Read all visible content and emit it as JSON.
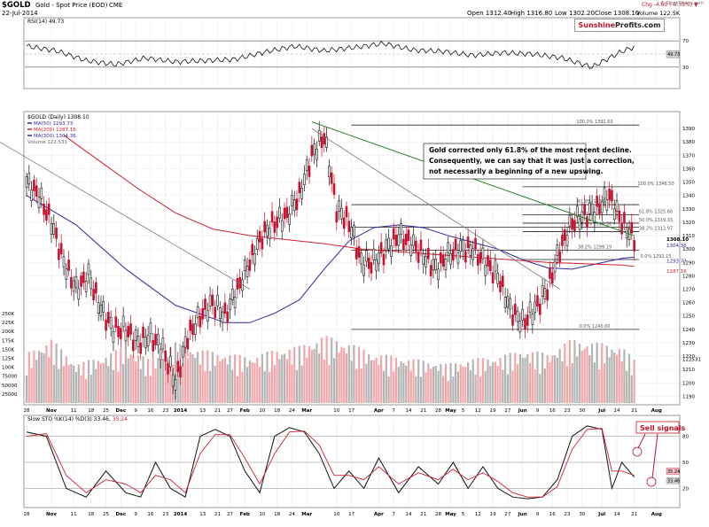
{
  "header": {
    "symbol": "$GOLD",
    "name": "Gold - Spot Price (EOD)",
    "exchange": "CME",
    "date": "22-Jul-2014",
    "open": "Open 1312.40",
    "high": "High 1316.80",
    "low": "Low 1302.20",
    "close": "Close 1308.10",
    "volume": "Volume 122.5K",
    "chg": "Chg -4.60 (-0.35%)",
    "chg_marker": "▼",
    "credit": "© StockCharts.com",
    "brand_a": "Sunshine",
    "brand_b": "Profits.com"
  },
  "legend": {
    "rsi": "RSI(14) 49.73",
    "gold": "$GOLD (Daily) 1308.10",
    "ma50": "MA(50) 1293.73",
    "ma200": "MA(200) 1287.16",
    "ma300": "MA(300) 1304.36",
    "volume": "Volume 122,531",
    "sto": "Slow STO %K(14) %D(3) 33.46,",
    "sto_d": "35.24"
  },
  "annotations": {
    "comment_line1": "Gold corrected only 61.8% of the most recent decline.",
    "comment_line2": "Consequently, we can say that it was just a correction,",
    "comment_line3": "not necessarily a beginning of a new upswing.",
    "sell_signals": "Sell signals"
  },
  "colors": {
    "up": "#111111",
    "down": "#c8102e",
    "ma50": "#2a2aa0",
    "ma200": "#d02030",
    "vol_up": "#b4b4b4",
    "vol_down": "#f2a6aa",
    "trend_green": "#2d7d2d",
    "trend_gray": "#7a7a7a",
    "accent": "#c0122c"
  },
  "chart_data": [
    {
      "type": "line",
      "title": "RSI(14) 49.73",
      "ylim": [
        0,
        100
      ],
      "y_ticks": [
        30,
        70
      ],
      "last_label": "49.73",
      "x": [
        0,
        12,
        24,
        36,
        48,
        60,
        72,
        84,
        96,
        108,
        120,
        132,
        144,
        156,
        168,
        180,
        192,
        204,
        216,
        228,
        240,
        252,
        260
      ],
      "values": [
        62,
        55,
        40,
        34,
        44,
        38,
        40,
        42,
        53,
        62,
        55,
        60,
        66,
        56,
        54,
        48,
        52,
        50,
        44,
        30,
        54,
        70,
        50
      ]
    },
    {
      "type": "line",
      "title": "$GOLD (Daily) 1308.10",
      "ylim": [
        1185,
        1400
      ],
      "y_ticks": [
        1190,
        1200,
        1210,
        1220,
        1230,
        1240,
        1250,
        1260,
        1270,
        1280,
        1290,
        1300,
        1310,
        1320,
        1330,
        1340,
        1350,
        1360,
        1370,
        1380,
        1390
      ],
      "x_ticks": [
        {
          "d": 0,
          "label": "28"
        },
        {
          "d": 10,
          "label": "Nov"
        },
        {
          "d": 19,
          "label": "11"
        },
        {
          "d": 26,
          "label": "18"
        },
        {
          "d": 32,
          "label": "25"
        },
        {
          "d": 38,
          "label": "Dec"
        },
        {
          "d": 44,
          "label": "9"
        },
        {
          "d": 50,
          "label": "16"
        },
        {
          "d": 56,
          "label": "23"
        },
        {
          "d": 62,
          "label": "2014"
        },
        {
          "d": 71,
          "label": "13"
        },
        {
          "d": 77,
          "label": "21"
        },
        {
          "d": 82,
          "label": "27"
        },
        {
          "d": 88,
          "label": "Feb"
        },
        {
          "d": 95,
          "label": "10"
        },
        {
          "d": 101,
          "label": "18"
        },
        {
          "d": 107,
          "label": "24"
        },
        {
          "d": 113,
          "label": "Mar"
        },
        {
          "d": 125,
          "label": "10"
        },
        {
          "d": 131,
          "label": "17"
        },
        {
          "d": 142,
          "label": "Apr"
        },
        {
          "d": 148,
          "label": "7"
        },
        {
          "d": 154,
          "label": "14"
        },
        {
          "d": 160,
          "label": "21"
        },
        {
          "d": 166,
          "label": "28"
        },
        {
          "d": 171,
          "label": "May"
        },
        {
          "d": 176,
          "label": "5"
        },
        {
          "d": 182,
          "label": "12"
        },
        {
          "d": 188,
          "label": "19"
        },
        {
          "d": 194,
          "label": "27"
        },
        {
          "d": 200,
          "label": "Jun"
        },
        {
          "d": 206,
          "label": "9"
        },
        {
          "d": 212,
          "label": "16"
        },
        {
          "d": 218,
          "label": "23"
        },
        {
          "d": 224,
          "label": "30"
        },
        {
          "d": 232,
          "label": "Jul"
        },
        {
          "d": 238,
          "label": "14"
        },
        {
          "d": 245,
          "label": "21"
        },
        {
          "d": 254,
          "label": "Aug"
        }
      ],
      "series": [
        {
          "name": "$GOLD",
          "kind": "candles",
          "x": [
            0,
            5,
            10,
            15,
            20,
            25,
            30,
            35,
            40,
            45,
            50,
            55,
            60,
            65,
            70,
            75,
            80,
            85,
            90,
            95,
            100,
            105,
            110,
            115,
            120,
            125,
            130,
            135,
            140,
            145,
            150,
            155,
            160,
            165,
            170,
            175,
            180,
            185,
            190,
            195,
            200,
            205,
            210,
            215,
            220,
            225,
            230,
            235,
            240,
            245
          ],
          "values": [
            1350,
            1340,
            1320,
            1290,
            1270,
            1280,
            1255,
            1240,
            1240,
            1230,
            1235,
            1225,
            1200,
            1235,
            1250,
            1260,
            1250,
            1270,
            1290,
            1310,
            1320,
            1325,
            1340,
            1370,
            1385,
            1330,
            1320,
            1290,
            1290,
            1300,
            1310,
            1305,
            1295,
            1285,
            1295,
            1300,
            1300,
            1290,
            1280,
            1255,
            1245,
            1255,
            1270,
            1300,
            1320,
            1325,
            1330,
            1340,
            1320,
            1308
          ]
        },
        {
          "name": "MA(50) 1293.73",
          "x": [
            0,
            20,
            40,
            60,
            80,
            90,
            100,
            110,
            120,
            130,
            140,
            150,
            160,
            170,
            180,
            190,
            200,
            210,
            220,
            230,
            240,
            245
          ],
          "values": [
            1340,
            1318,
            1285,
            1258,
            1245,
            1245,
            1252,
            1262,
            1285,
            1306,
            1316,
            1318,
            1316,
            1310,
            1305,
            1300,
            1292,
            1286,
            1285,
            1289,
            1293,
            1294
          ]
        },
        {
          "name": "MA(200) 1287.16",
          "x": [
            15,
            30,
            45,
            60,
            75,
            90,
            105,
            120,
            135,
            150,
            165,
            180,
            195,
            210,
            225,
            240,
            245
          ],
          "values": [
            1385,
            1365,
            1345,
            1327,
            1315,
            1310,
            1307,
            1304,
            1300,
            1298,
            1296,
            1294,
            1292,
            1290,
            1289,
            1288,
            1287
          ]
        }
      ],
      "trendlines": [
        {
          "name": "green resistance",
          "from": [
            115,
            1395
          ],
          "to": [
            245,
            1310
          ]
        },
        {
          "name": "gray resistance 1",
          "from": [
            -20,
            1390
          ],
          "to": [
            90,
            1270
          ]
        },
        {
          "name": "gray resistance 2",
          "from": [
            115,
            1390
          ],
          "to": [
            215,
            1270
          ]
        }
      ],
      "fib_levels": [
        {
          "label": "100.0% 1392.60",
          "value": 1392.6
        },
        {
          "label": "61.8% 1333.15",
          "value": 1333.15
        },
        {
          "label": "50.0% 1316.32",
          "value": 1316.32
        },
        {
          "label": "38.2% 1299.19",
          "value": 1299.19
        },
        {
          "label": "0.0% 1240.00",
          "value": 1240.0
        },
        {
          "label": "100.0% 1346.50",
          "value": 1346.5
        },
        {
          "label": "61.8% 1325.68",
          "value": 1325.68
        },
        {
          "label": "50.0% 1319.33",
          "value": 1319.33
        },
        {
          "label": "38.2% 1312.97",
          "value": 1312.97
        },
        {
          "label": "0.0% 1292.15",
          "value": 1292.15
        }
      ],
      "price_labels": [
        {
          "label": "1308.10",
          "value": 1308.1
        },
        {
          "label": "1304.36",
          "value": 1304.36
        },
        {
          "label": "1293.73",
          "value": 1293.73
        },
        {
          "label": "1287.16",
          "value": 1287.16
        }
      ]
    },
    {
      "type": "bar",
      "title": "Volume 122,531",
      "ylim": [
        0,
        260000
      ],
      "y_ticks": [
        "25000",
        "50000",
        "75000",
        "100K",
        "125K",
        "150K",
        "175K",
        "200K",
        "225K",
        "250K"
      ],
      "last_label": "122531",
      "x": [
        0,
        10,
        20,
        30,
        40,
        50,
        60,
        70,
        80,
        90,
        100,
        110,
        120,
        130,
        140,
        150,
        160,
        170,
        180,
        190,
        200,
        210,
        220,
        230,
        240,
        245
      ],
      "values": [
        140000,
        180000,
        110000,
        130000,
        160000,
        120000,
        170000,
        150000,
        140000,
        130000,
        150000,
        160000,
        190000,
        170000,
        140000,
        130000,
        120000,
        110000,
        125000,
        130000,
        150000,
        140000,
        180000,
        170000,
        160000,
        122531
      ]
    },
    {
      "type": "line",
      "title": "Slow STO %K(14) %D(3) 33.46, 35.24",
      "ylim": [
        0,
        100
      ],
      "y_ticks": [
        20,
        50,
        80
      ],
      "last_labels": [
        "35.24",
        "33.46"
      ],
      "series": [
        {
          "name": "%K",
          "x": [
            0,
            8,
            16,
            24,
            32,
            40,
            46,
            52,
            58,
            64,
            70,
            76,
            82,
            88,
            94,
            100,
            106,
            112,
            118,
            124,
            130,
            136,
            142,
            150,
            158,
            166,
            172,
            178,
            184,
            190,
            196,
            202,
            208,
            214,
            220,
            226,
            232,
            236,
            240,
            245
          ],
          "values": [
            85,
            80,
            20,
            10,
            40,
            15,
            10,
            50,
            20,
            10,
            80,
            88,
            80,
            40,
            15,
            80,
            90,
            85,
            60,
            20,
            40,
            20,
            55,
            15,
            45,
            25,
            50,
            20,
            45,
            20,
            10,
            8,
            10,
            30,
            80,
            92,
            88,
            20,
            50,
            33
          ]
        },
        {
          "name": "%D",
          "x": [
            0,
            8,
            16,
            24,
            32,
            40,
            46,
            52,
            58,
            64,
            70,
            76,
            82,
            88,
            94,
            100,
            106,
            112,
            118,
            124,
            130,
            136,
            142,
            150,
            158,
            166,
            172,
            178,
            184,
            190,
            196,
            202,
            208,
            214,
            220,
            226,
            232,
            236,
            240,
            245
          ],
          "values": [
            80,
            83,
            35,
            15,
            30,
            25,
            15,
            35,
            30,
            15,
            60,
            82,
            82,
            55,
            25,
            60,
            85,
            86,
            70,
            35,
            35,
            30,
            45,
            25,
            38,
            30,
            42,
            30,
            38,
            28,
            15,
            10,
            10,
            22,
            65,
            88,
            89,
            40,
            40,
            35
          ]
        }
      ]
    }
  ]
}
